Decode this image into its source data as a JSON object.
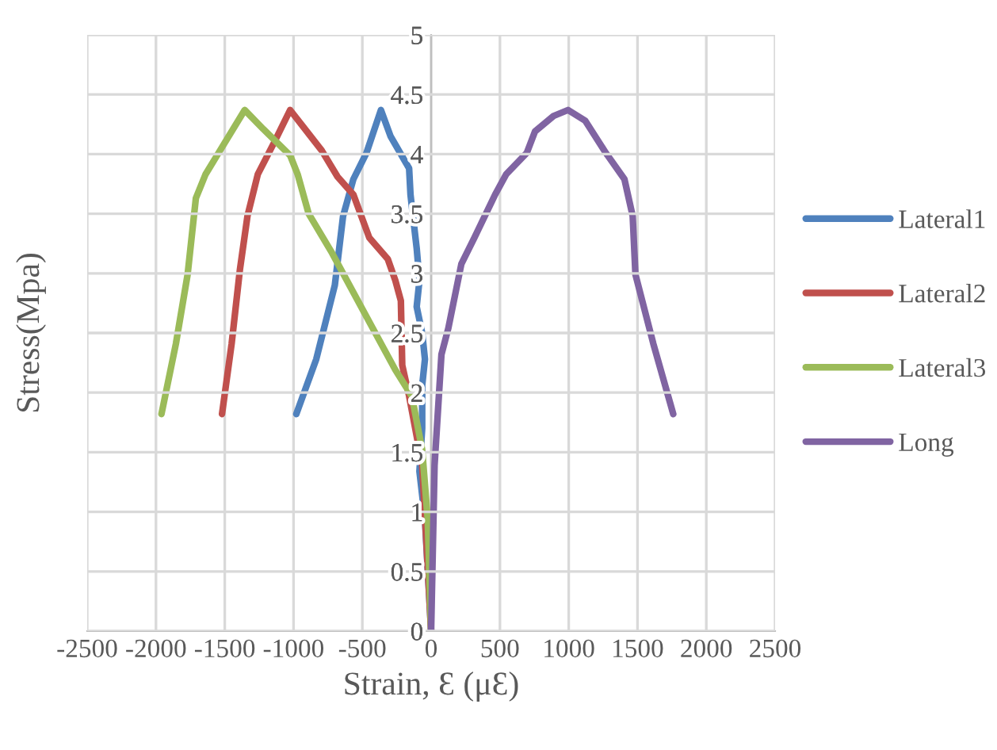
{
  "chart_data": {
    "type": "line",
    "xlabel": "Strain, Ɛ (μƐ)",
    "ylabel": "Stress(Mpa)",
    "xlim": [
      -2500,
      2500
    ],
    "xticks": [
      -2500,
      -2000,
      -1500,
      -1000,
      -500,
      0,
      500,
      1000,
      1500,
      2000,
      2500
    ],
    "ylim": [
      0,
      5
    ],
    "yticks": [
      0,
      0.5,
      1,
      1.5,
      2,
      2.5,
      3,
      3.5,
      4,
      4.5,
      5
    ],
    "grid": true,
    "legend": "right",
    "marker": "none",
    "line_style": "solid",
    "series": [
      {
        "name": "Lateral1",
        "color": "#4f81bd",
        "x": [
          -980,
          -835,
          -700,
          -640,
          -565,
          -470,
          -365,
          -295,
          -160,
          -150,
          -105,
          -85,
          -105,
          -65,
          -45,
          -65,
          -65,
          -85,
          -45,
          0
        ],
        "values": [
          1.82,
          2.28,
          2.9,
          3.48,
          3.79,
          4.01,
          4.37,
          4.15,
          3.88,
          3.66,
          3.21,
          2.94,
          2.72,
          2.5,
          2.28,
          2.06,
          1.7,
          1.34,
          0.94,
          0
        ]
      },
      {
        "name": "Lateral2",
        "color": "#c0504d",
        "x": [
          -1520,
          -1450,
          -1390,
          -1335,
          -1260,
          -1140,
          -1025,
          -930,
          -795,
          -680,
          -565,
          -450,
          -315,
          -260,
          -220,
          -210,
          -160,
          -65,
          0
        ],
        "values": [
          1.82,
          2.41,
          3.03,
          3.48,
          3.83,
          4.1,
          4.37,
          4.23,
          4.03,
          3.81,
          3.66,
          3.3,
          3.12,
          2.94,
          2.77,
          2.23,
          1.97,
          1.39,
          0
        ]
      },
      {
        "name": "Lateral3",
        "color": "#9bbb59",
        "x": [
          -1960,
          -1855,
          -1770,
          -1710,
          -1640,
          -1545,
          -1355,
          -1220,
          -1025,
          -970,
          -890,
          -720,
          -490,
          -260,
          -140,
          -65,
          -25,
          0
        ],
        "values": [
          1.82,
          2.41,
          2.99,
          3.63,
          3.83,
          4.01,
          4.37,
          4.21,
          3.99,
          3.83,
          3.5,
          3.17,
          2.68,
          2.19,
          1.97,
          1.52,
          0.94,
          0
        ]
      },
      {
        "name": "Long",
        "color": "#8064a2",
        "x": [
          0,
          25,
          75,
          125,
          220,
          315,
          465,
          545,
          695,
          755,
          890,
          995,
          1120,
          1270,
          1405,
          1465,
          1485,
          1615,
          1760
        ],
        "values": [
          0,
          1.39,
          2.32,
          2.54,
          3.08,
          3.3,
          3.66,
          3.83,
          4.01,
          4.19,
          4.32,
          4.37,
          4.28,
          4.01,
          3.79,
          3.48,
          2.99,
          2.41,
          1.82
        ]
      }
    ]
  }
}
